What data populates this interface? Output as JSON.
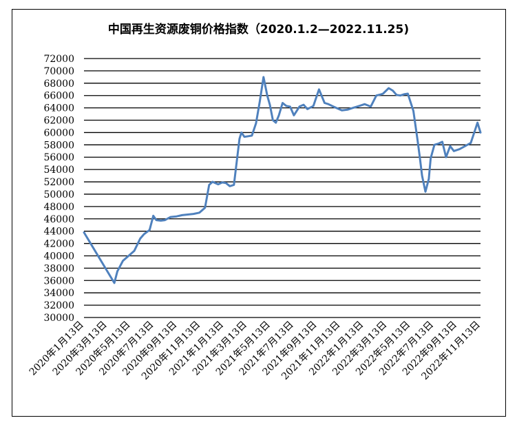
{
  "chart_data": {
    "type": "line",
    "title": "中国再生资源废铜价格指数（2020.1.2—2022.11.25)",
    "xlabel": "",
    "ylabel": "",
    "ylim": [
      30000,
      72000
    ],
    "y_ticks": [
      "30000",
      "32000",
      "34000",
      "36000",
      "38000",
      "40000",
      "42000",
      "44000",
      "46000",
      "48000",
      "50000",
      "52000",
      "54000",
      "56000",
      "58000",
      "60000",
      "62000",
      "64000",
      "66000",
      "68000",
      "70000",
      "72000"
    ],
    "x_ticks": [
      "2020年1月13日",
      "2020年3月13日",
      "2020年5月13日",
      "2020年7月13日",
      "2020年9月13日",
      "2020年11月13日",
      "2021年1月13日",
      "2021年3月13日",
      "2021年5月13日",
      "2021年7月13日",
      "2021年9月13日",
      "2021年11月13日",
      "2022年1月13日",
      "2022年3月13日",
      "2022年5月13日",
      "2022年7月13日",
      "2022年9月13日",
      "2022年11月13日"
    ],
    "grid": true,
    "legend": "none",
    "series": [
      {
        "color": "#4F81BD",
        "x": [
          "2020-01-02",
          "2020-03-23",
          "2020-03-31",
          "2020-04-15",
          "2020-04-30",
          "2020-05-15",
          "2020-05-31",
          "2020-06-10",
          "2020-06-25",
          "2020-07-05",
          "2020-07-13",
          "2020-07-25",
          "2020-08-05",
          "2020-08-20",
          "2020-09-05",
          "2020-09-20",
          "2020-10-05",
          "2020-10-20",
          "2020-11-05",
          "2020-11-20",
          "2020-12-01",
          "2020-12-10",
          "2020-12-25",
          "2021-01-05",
          "2021-01-15",
          "2021-01-25",
          "2021-02-05",
          "2021-02-20",
          "2021-02-25",
          "2021-03-05",
          "2021-03-15",
          "2021-03-25",
          "2021-04-05",
          "2021-04-15",
          "2021-04-25",
          "2021-05-05",
          "2021-05-12",
          "2021-05-20",
          "2021-05-28",
          "2021-06-05",
          "2021-06-15",
          "2021-06-25",
          "2021-07-05",
          "2021-07-15",
          "2021-07-30",
          "2021-08-10",
          "2021-08-20",
          "2021-09-05",
          "2021-09-20",
          "2021-10-05",
          "2021-10-15",
          "2021-10-25",
          "2021-11-05",
          "2021-11-20",
          "2021-12-05",
          "2021-12-20",
          "2022-01-05",
          "2022-01-20",
          "2022-02-05",
          "2022-02-20",
          "2022-03-05",
          "2022-03-10",
          "2022-03-25",
          "2022-04-05",
          "2022-04-15",
          "2022-04-25",
          "2022-05-05",
          "2022-05-15",
          "2022-05-30",
          "2022-06-10",
          "2022-06-16",
          "2022-06-22",
          "2022-07-01",
          "2022-07-10",
          "2022-07-15",
          "2022-07-25",
          "2022-08-05",
          "2022-08-15",
          "2022-08-25",
          "2022-09-05",
          "2022-09-15",
          "2022-09-30",
          "2022-10-15",
          "2022-10-30",
          "2022-11-10",
          "2022-11-17",
          "2022-11-25"
        ],
        "y": [
          43800,
          35600,
          37500,
          39200,
          40000,
          40800,
          42800,
          43500,
          44200,
          46500,
          45800,
          45700,
          45800,
          46300,
          46400,
          46600,
          46700,
          46800,
          47000,
          47800,
          51500,
          52000,
          51600,
          51900,
          51800,
          51300,
          51500,
          59000,
          60000,
          59300,
          59400,
          59500,
          61500,
          65000,
          69000,
          66000,
          64500,
          62000,
          61600,
          62800,
          64800,
          64300,
          64200,
          62800,
          64200,
          64500,
          63800,
          64300,
          67000,
          64800,
          64600,
          64300,
          64000,
          63600,
          63700,
          64000,
          64300,
          64600,
          64200,
          66000,
          66200,
          66300,
          67200,
          66800,
          66100,
          66000,
          66200,
          66300,
          63500,
          58800,
          56000,
          53000,
          50400,
          52500,
          55800,
          58000,
          58200,
          58500,
          56000,
          57800,
          57000,
          57300,
          57800,
          58300,
          60300,
          61600,
          60000
        ]
      }
    ]
  }
}
